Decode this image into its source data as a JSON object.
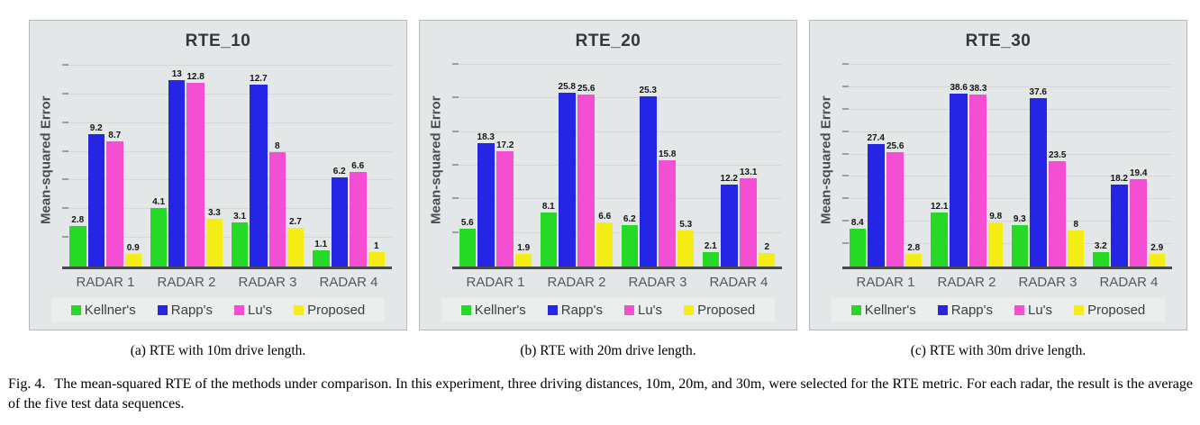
{
  "chart_data": [
    {
      "type": "bar",
      "title": "RTE_10",
      "ylabel": "Mean-squared Error",
      "caption": "(a) RTE with 10m drive length.",
      "categories": [
        "RADAR 1",
        "RADAR 2",
        "RADAR 3",
        "RADAR 4"
      ],
      "series": [
        {
          "name": "Kellner's",
          "color": "#26d926",
          "values": [
            2.8,
            4.1,
            3.1,
            1.1
          ]
        },
        {
          "name": "Rapp's",
          "color": "#2525e6",
          "values": [
            9.2,
            13,
            12.7,
            6.2
          ]
        },
        {
          "name": "Lu's",
          "color": "#f44fd3",
          "values": [
            8.7,
            12.8,
            8,
            6.6
          ]
        },
        {
          "name": "Proposed",
          "color": "#f5ee16",
          "values": [
            0.9,
            3.3,
            2.7,
            1
          ]
        }
      ],
      "ylim": [
        0,
        15
      ],
      "grid_step": 2,
      "grid": true,
      "legend_position": "bottom"
    },
    {
      "type": "bar",
      "title": "RTE_20",
      "ylabel": "Mean-squared Error",
      "caption": "(b) RTE with 20m drive length.",
      "categories": [
        "RADAR 1",
        "RADAR 2",
        "RADAR 3",
        "RADAR 4"
      ],
      "series": [
        {
          "name": "Kellner's",
          "color": "#26d926",
          "values": [
            5.6,
            8.1,
            6.2,
            2.1
          ]
        },
        {
          "name": "Rapp's",
          "color": "#2525e6",
          "values": [
            18.3,
            25.8,
            25.3,
            12.2
          ]
        },
        {
          "name": "Lu's",
          "color": "#f44fd3",
          "values": [
            17.2,
            25.6,
            15.8,
            13.1
          ]
        },
        {
          "name": "Proposed",
          "color": "#f5ee16",
          "values": [
            1.9,
            6.6,
            5.3,
            2
          ]
        }
      ],
      "ylim": [
        0,
        32
      ],
      "grid_step": 5,
      "grid": true,
      "legend_position": "bottom"
    },
    {
      "type": "bar",
      "title": "RTE_30",
      "ylabel": "Mean-squared Error",
      "caption": "(c) RTE with 30m drive length.",
      "categories": [
        "RADAR 1",
        "RADAR 2",
        "RADAR 3",
        "RADAR 4"
      ],
      "series": [
        {
          "name": "Kellner's",
          "color": "#26d926",
          "values": [
            8.4,
            12.1,
            9.3,
            3.2
          ]
        },
        {
          "name": "Rapp's",
          "color": "#2525e6",
          "values": [
            27.4,
            38.6,
            37.6,
            18.2
          ]
        },
        {
          "name": "Lu's",
          "color": "#f44fd3",
          "values": [
            25.6,
            38.3,
            23.5,
            19.4
          ]
        },
        {
          "name": "Proposed",
          "color": "#f5ee16",
          "values": [
            2.8,
            9.8,
            8,
            2.9
          ]
        }
      ],
      "ylim": [
        0,
        48
      ],
      "grid_step": 5,
      "grid": true,
      "legend_position": "bottom"
    }
  ],
  "figure_caption": {
    "label": "Fig. 4.",
    "text": "The mean-squared RTE of the methods under comparison. In this experiment, three driving distances, 10m, 20m, and 30m, were selected for the RTE metric. For each radar, the result is the average of the five test data sequences."
  }
}
